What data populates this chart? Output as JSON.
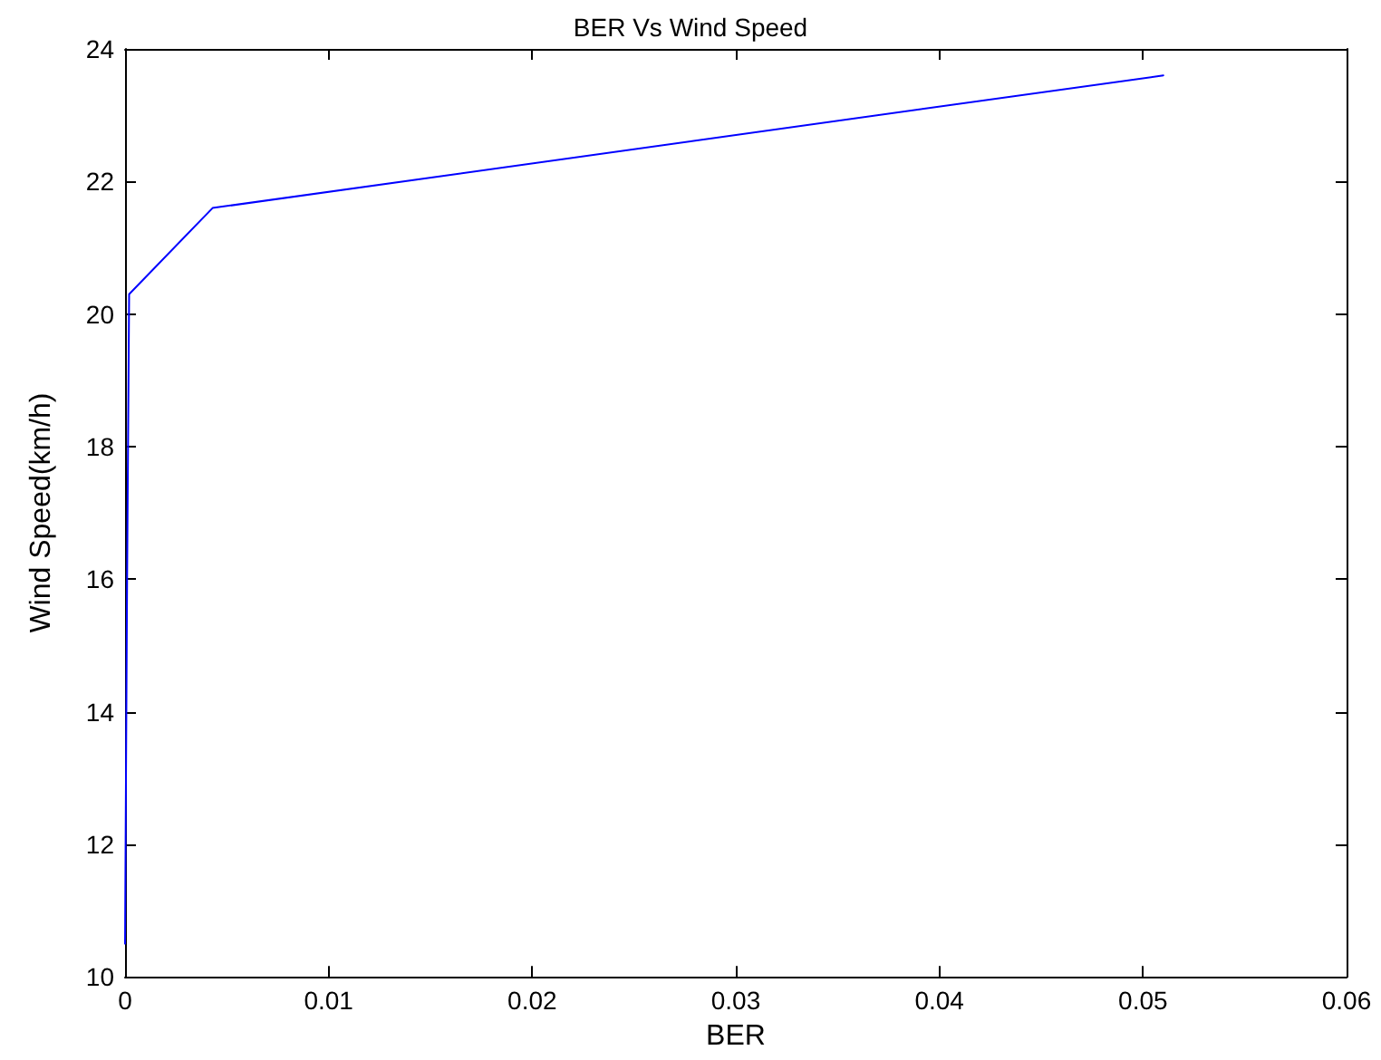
{
  "chart_data": {
    "type": "line",
    "title": "BER Vs Wind Speed",
    "xlabel": "BER",
    "ylabel": "Wind Speed(km/h)",
    "x": [
      0,
      0.0001,
      0.0002,
      0.0043,
      0.051
    ],
    "series": [
      {
        "color": "#0000ff",
        "values": [
          10.5,
          16,
          20.3,
          21.6,
          23.6
        ]
      }
    ],
    "xlim": [
      0,
      0.06
    ],
    "xticks": [
      0,
      0.01,
      0.02,
      0.03,
      0.04,
      0.05,
      0.06
    ],
    "ylim": [
      10,
      24
    ],
    "yticks": [
      10,
      12,
      14,
      16,
      18,
      20,
      22,
      24
    ],
    "marker": "none",
    "line_style": "solid"
  }
}
